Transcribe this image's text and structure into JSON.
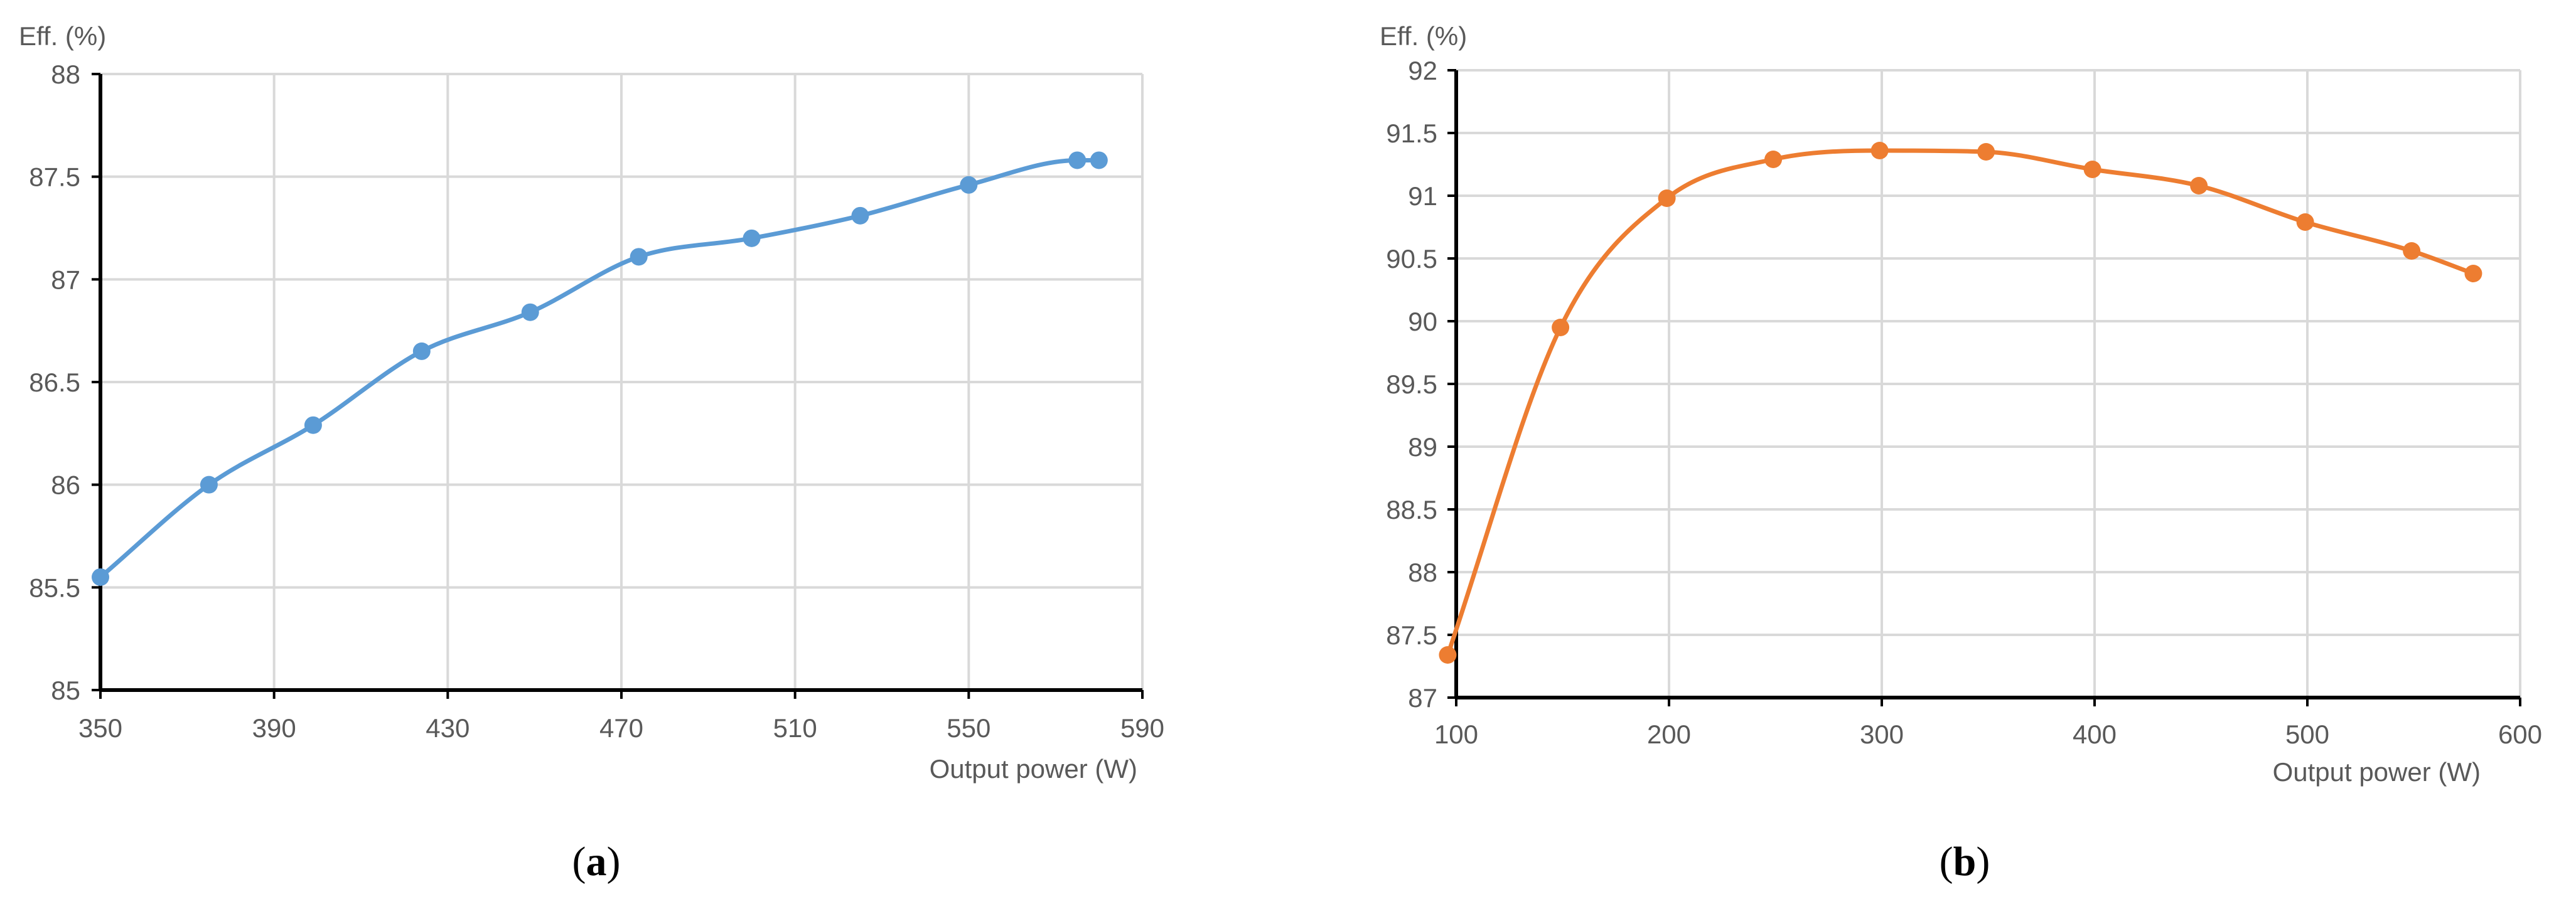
{
  "chart_data": [
    {
      "type": "line",
      "panel_label": "a",
      "xlabel": "Output power (W)",
      "ylabel": "Eff. (%)",
      "xlim": [
        350,
        590
      ],
      "ylim": [
        85,
        88
      ],
      "xticks": [
        "350",
        "390",
        "430",
        "470",
        "510",
        "550",
        "590"
      ],
      "yticks": [
        "85",
        "85.5",
        "86",
        "86.5",
        "87",
        "87.5",
        "88"
      ],
      "grid": true,
      "color": "#5b9bd5",
      "series": [
        {
          "x": [
            350,
            375,
            399,
            424,
            449,
            474,
            500,
            525,
            550,
            575,
            580
          ],
          "y": [
            85.55,
            86.0,
            86.29,
            86.65,
            86.84,
            87.11,
            87.2,
            87.31,
            87.46,
            87.58,
            87.58
          ]
        }
      ]
    },
    {
      "type": "line",
      "panel_label": "b",
      "xlabel": "Output power (W)",
      "ylabel": "Eff. (%)",
      "xlim": [
        100,
        600
      ],
      "ylim": [
        87,
        92
      ],
      "xticks": [
        "100",
        "200",
        "300",
        "400",
        "500",
        "600"
      ],
      "yticks": [
        "87",
        "87.5",
        "88",
        "88.5",
        "89",
        "89.5",
        "90",
        "90.5",
        "91",
        "91.5",
        "92"
      ],
      "grid": true,
      "color": "#ed7d31",
      "series": [
        {
          "x": [
            96,
            149,
            199,
            249,
            299,
            349,
            399,
            449,
            499,
            549,
            578
          ],
          "y": [
            87.34,
            89.95,
            90.98,
            91.29,
            91.36,
            91.35,
            91.21,
            91.08,
            90.79,
            90.56,
            90.38
          ]
        }
      ]
    }
  ]
}
